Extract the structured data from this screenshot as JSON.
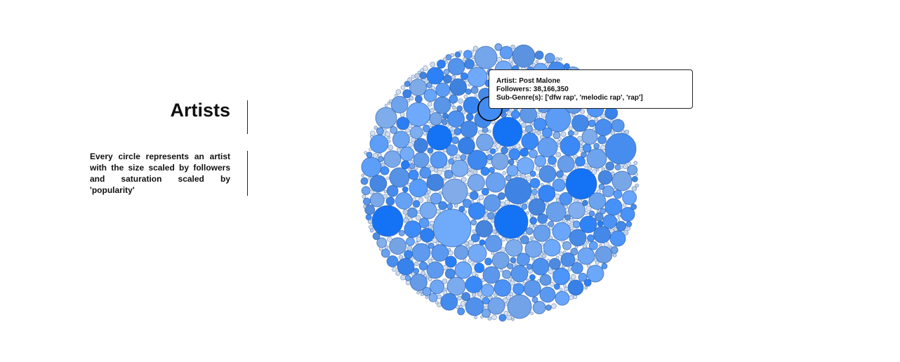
{
  "panel": {
    "title": "Artists",
    "description": "Every circle represents an artist with the size scaled by followers and saturation scaled by 'popularity'"
  },
  "tooltip": {
    "artist_line": "Artist: Post Malone",
    "followers_line": "Followers: 38,166,350",
    "subgenre_line": "Sub-Genre(s): ['dfw rap', 'melodic rap', 'rap']"
  },
  "chart_data": {
    "type": "bubble-pack",
    "encoding": {
      "size": "followers",
      "saturation": "popularity"
    },
    "highlighted": {
      "artist": "Post Malone",
      "followers": 38166350,
      "sub_genres": [
        "dfw rap",
        "melodic rap",
        "rap"
      ]
    },
    "colors": {
      "base": "#3b82f6",
      "stroke": "#2a5fa8",
      "highlight_stroke": "#000000"
    }
  }
}
